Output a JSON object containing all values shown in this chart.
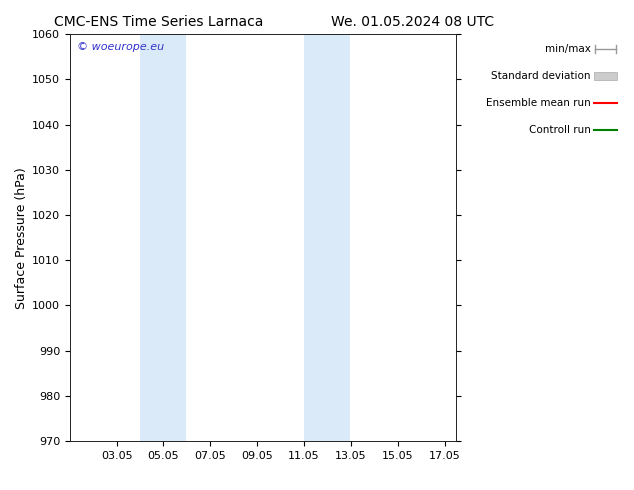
{
  "title_left": "CMC-ENS Time Series Larnaca",
  "title_right": "We. 01.05.2024 08 UTC",
  "ylabel": "Surface Pressure (hPa)",
  "ylim": [
    970,
    1060
  ],
  "yticks": [
    970,
    980,
    990,
    1000,
    1010,
    1020,
    1030,
    1040,
    1050,
    1060
  ],
  "xlim": [
    1.0,
    17.5
  ],
  "xtick_labels": [
    "03.05",
    "05.05",
    "07.05",
    "09.05",
    "11.05",
    "13.05",
    "15.05",
    "17.05"
  ],
  "xtick_positions": [
    3,
    5,
    7,
    9,
    11,
    13,
    15,
    17
  ],
  "shaded_bands": [
    {
      "x_start": 4.0,
      "x_end": 5.95,
      "color": "#daeaf8"
    },
    {
      "x_start": 11.0,
      "x_end": 12.95,
      "color": "#daeaf8"
    }
  ],
  "watermark_text": "© woeurope.eu",
  "watermark_color": "#3333cc",
  "background_color": "#ffffff",
  "grid_color": "#bbbbbb",
  "title_fontsize": 10,
  "tick_fontsize": 8,
  "ylabel_fontsize": 9
}
